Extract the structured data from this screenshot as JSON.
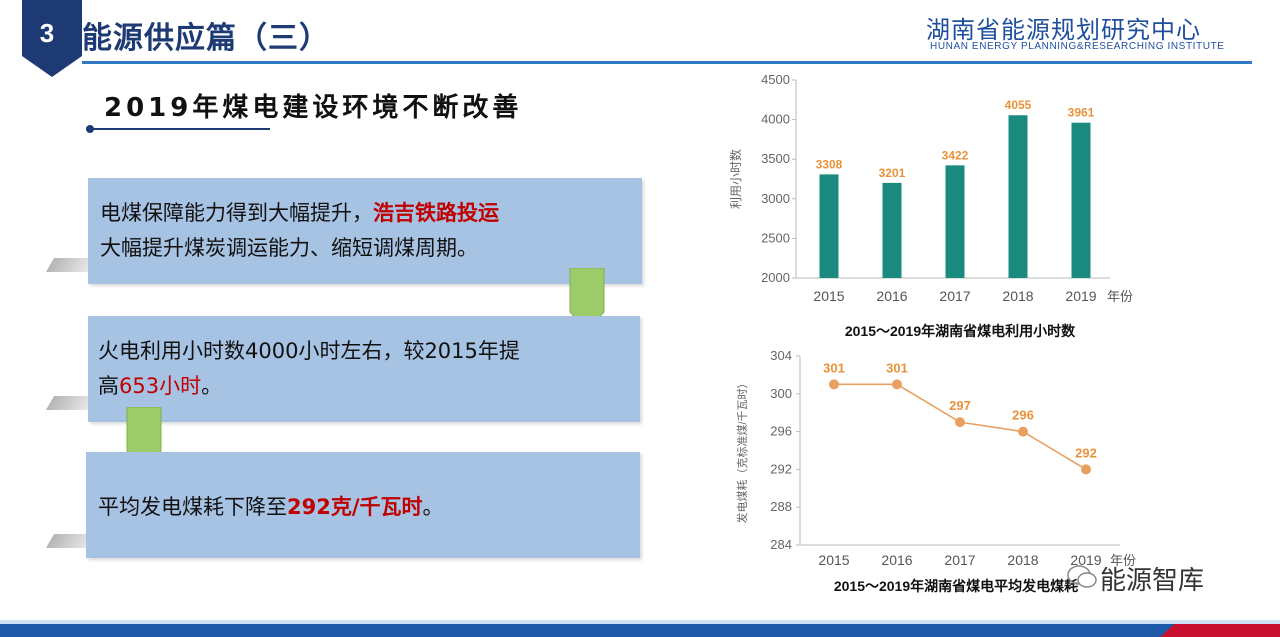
{
  "header": {
    "section_number": "3",
    "section_title": "能源供应篇（三）",
    "org_name_cn": "湖南省能源规划研究中心",
    "org_name_en": "HUNAN ENERGY PLANNING&RESEARCHING INSTITUTE"
  },
  "subtitle": "2019年煤电建设环境不断改善",
  "boxes": [
    {
      "pre": "电煤保障能力得到大幅提升，",
      "highlight": "浩吉铁路投运",
      "line2": "大幅提升煤炭调运能力、缩短调煤周期。"
    },
    {
      "pre": "火电利用小时数4000小时左右，较2015年提",
      "line2_pre": "高",
      "highlight": "653小时",
      "post": "。"
    },
    {
      "pre": "平均发电煤耗下降至",
      "highlight": "292克/千瓦时",
      "post": "。"
    }
  ],
  "watermark": "能源智库",
  "colors": {
    "navy": "#1e3a74",
    "bar": "#1a8a7e",
    "line": "#e8a060",
    "label_orange": "#e8923a",
    "box": "#a7c3e3",
    "arrow": "#9ccb6a",
    "red": "#c00000"
  },
  "chart_data": [
    {
      "type": "bar",
      "categories": [
        "2015",
        "2016",
        "2017",
        "2018",
        "2019"
      ],
      "values": [
        3308,
        3201,
        3422,
        4055,
        3961
      ],
      "title": "2015～2019年湖南省煤电利用小时数",
      "xlabel": "年份",
      "ylabel": "利用小时数",
      "ylim": [
        2000,
        4500
      ],
      "yticks": [
        2000,
        2500,
        3000,
        3500,
        4000,
        4500
      ],
      "grid": false
    },
    {
      "type": "line",
      "categories": [
        "2015",
        "2016",
        "2017",
        "2018",
        "2019"
      ],
      "values": [
        301,
        301,
        297,
        296,
        292
      ],
      "title": "2015～2019年湖南省煤电平均发电煤耗",
      "xlabel": "年份",
      "ylabel": "发电煤耗（克标准煤/千瓦时）",
      "ylim": [
        284,
        304
      ],
      "yticks": [
        284,
        288,
        292,
        296,
        300,
        304
      ],
      "grid": false
    }
  ]
}
